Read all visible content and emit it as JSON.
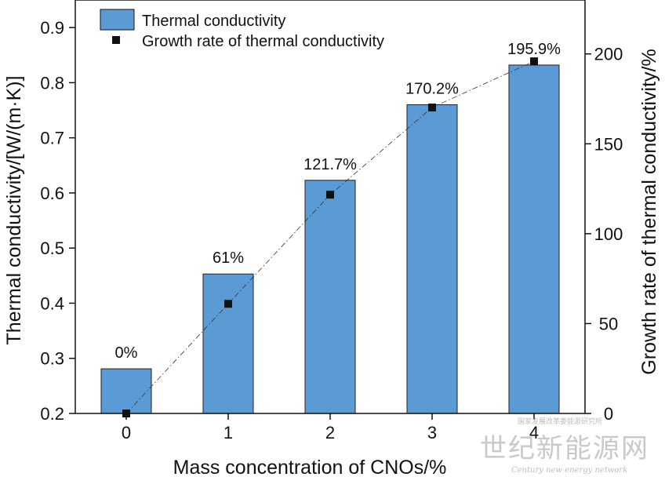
{
  "chart_data": {
    "type": "bar+line",
    "categories": [
      "0",
      "1",
      "2",
      "3",
      "4"
    ],
    "xlabel": "Mass concentration of CNOs/%",
    "ylabel_left": "Thermal conductivity/[W/(m·K)]",
    "ylabel_right": "Growth rate of thermal conductivity/%",
    "ylim_left": [
      0.2,
      0.95
    ],
    "yticks_left": [
      "0.2",
      "0.3",
      "0.4",
      "0.5",
      "0.6",
      "0.7",
      "0.8",
      "0.9"
    ],
    "ylim_right": [
      0,
      230
    ],
    "yticks_right": [
      "0",
      "50",
      "100",
      "150",
      "200"
    ],
    "series": [
      {
        "name": "Thermal conductivity",
        "type": "bar",
        "axis": "left",
        "color": "#5b9bd5",
        "values": [
          0.281,
          0.453,
          0.623,
          0.76,
          0.832
        ]
      },
      {
        "name": "Growth rate of thermal conductivity",
        "type": "line",
        "axis": "right",
        "color": "#111111",
        "values": [
          0,
          61,
          121.7,
          170.2,
          195.9
        ],
        "labels": [
          "0%",
          "61%",
          "121.7%",
          "170.2%",
          "195.9%"
        ]
      }
    ],
    "legend_position": "top-left",
    "grid": false
  },
  "watermark": {
    "top_text": "国家发展改革委能源研究所",
    "chinese": "世纪新能源网",
    "english": "Century new energy network"
  }
}
